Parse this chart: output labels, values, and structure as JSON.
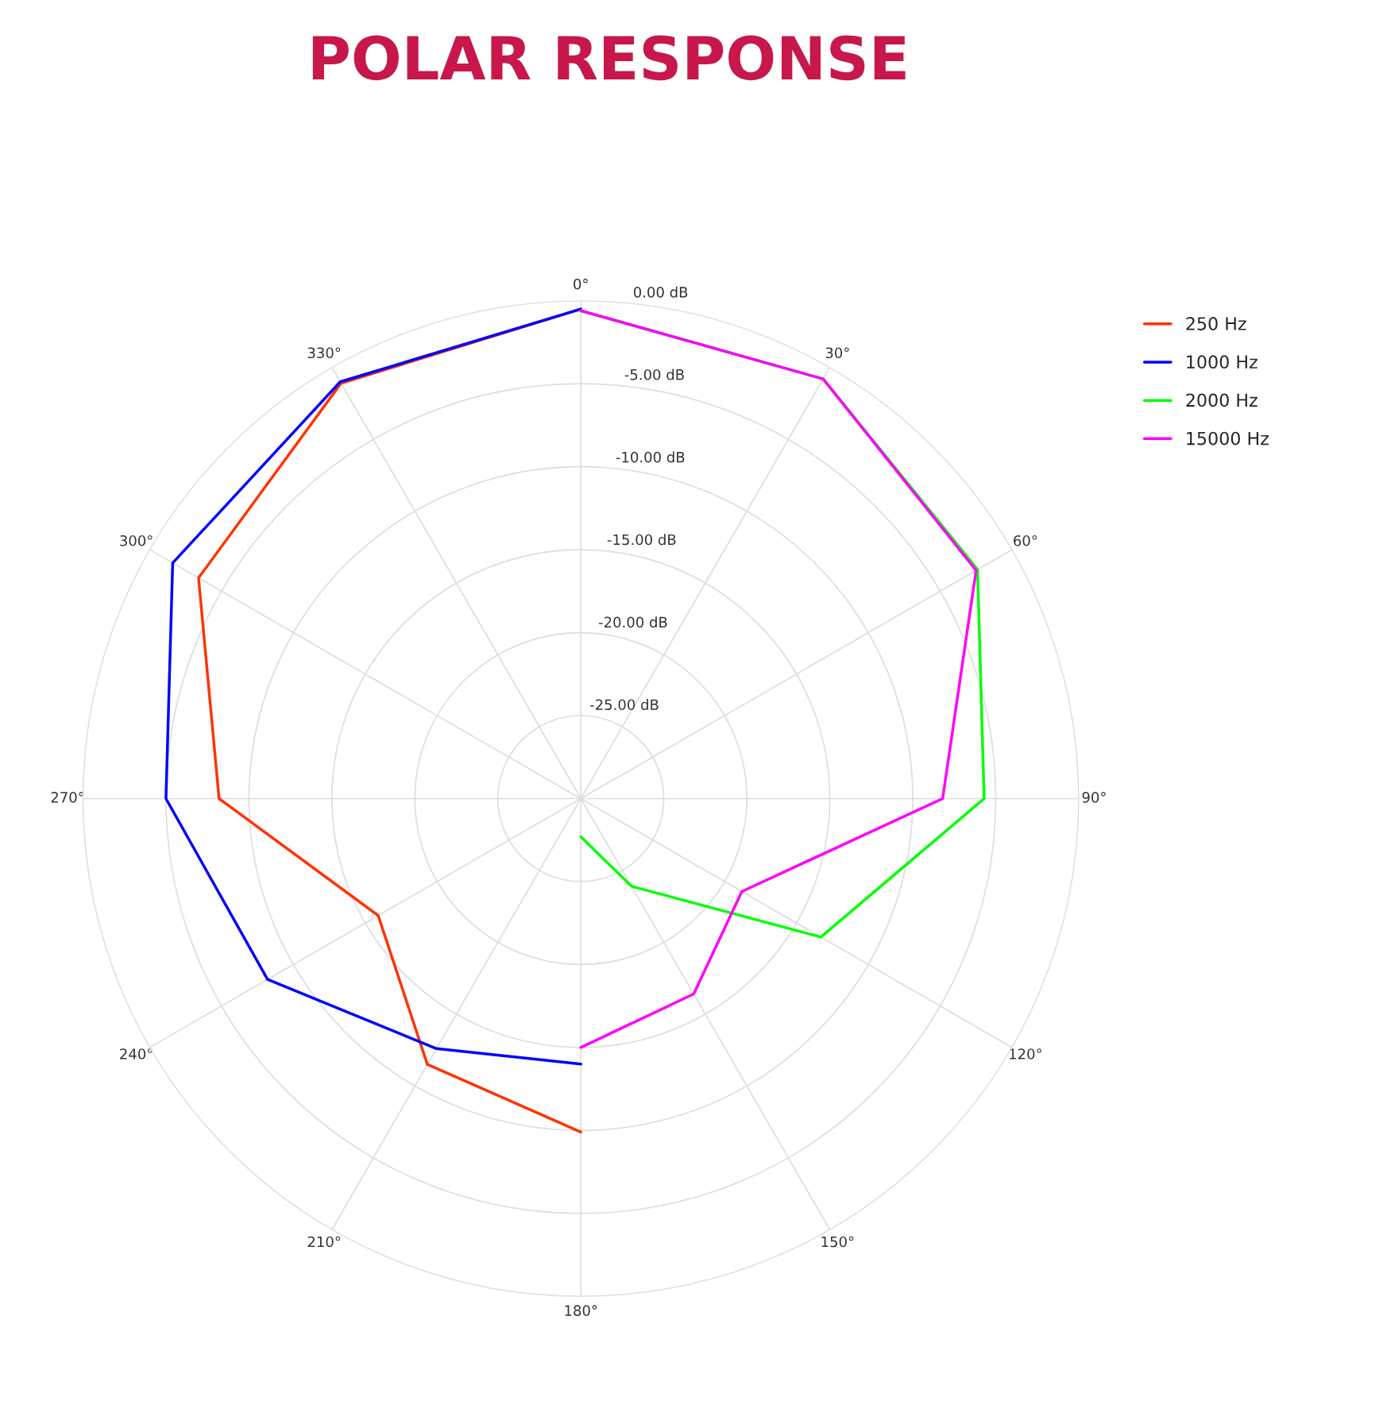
{
  "chart_data": {
    "type": "radar",
    "title": "POLAR RESPONSE",
    "categories": [
      "0°",
      "30°",
      "60°",
      "90°",
      "120°",
      "150°",
      "180°",
      "210°",
      "240°",
      "270°",
      "300°",
      "330°"
    ],
    "ylim": [
      -30,
      0
    ],
    "yticks": [
      {
        "value": 0,
        "label": "0.00 dB"
      },
      {
        "value": -5,
        "label": "-5.00 dB"
      },
      {
        "value": -10,
        "label": "-10.00 dB"
      },
      {
        "value": -15,
        "label": "-15.00 dB"
      },
      {
        "value": -20,
        "label": "-20.00 dB"
      },
      {
        "value": -25,
        "label": "-25.00 dB"
      }
    ],
    "grid": true,
    "legend": "top right",
    "series": [
      {
        "name": "250 Hz",
        "color": "#ff3300",
        "values": [
          -0.5,
          null,
          null,
          null,
          null,
          null,
          -9.9,
          -11.5,
          -15.9,
          -8.2,
          -3.4,
          -1.1
        ]
      },
      {
        "name": "1000 Hz",
        "color": "#0000ff",
        "values": [
          -0.5,
          null,
          null,
          null,
          null,
          null,
          -14.0,
          -12.6,
          -8.2,
          -5.0,
          -1.6,
          -1.0
        ]
      },
      {
        "name": "2000 Hz",
        "color": "#00ff00",
        "values": [
          -0.6,
          -0.8,
          -2.4,
          -5.7,
          -13.3,
          -23.9,
          -27.7,
          null,
          null,
          null,
          null,
          null
        ]
      },
      {
        "name": "15000 Hz",
        "color": "#ff00ff",
        "values": [
          -0.6,
          -0.8,
          -2.5,
          -8.2,
          -18.8,
          -16.4,
          -15.0,
          null,
          null,
          null,
          null,
          null
        ]
      }
    ]
  }
}
